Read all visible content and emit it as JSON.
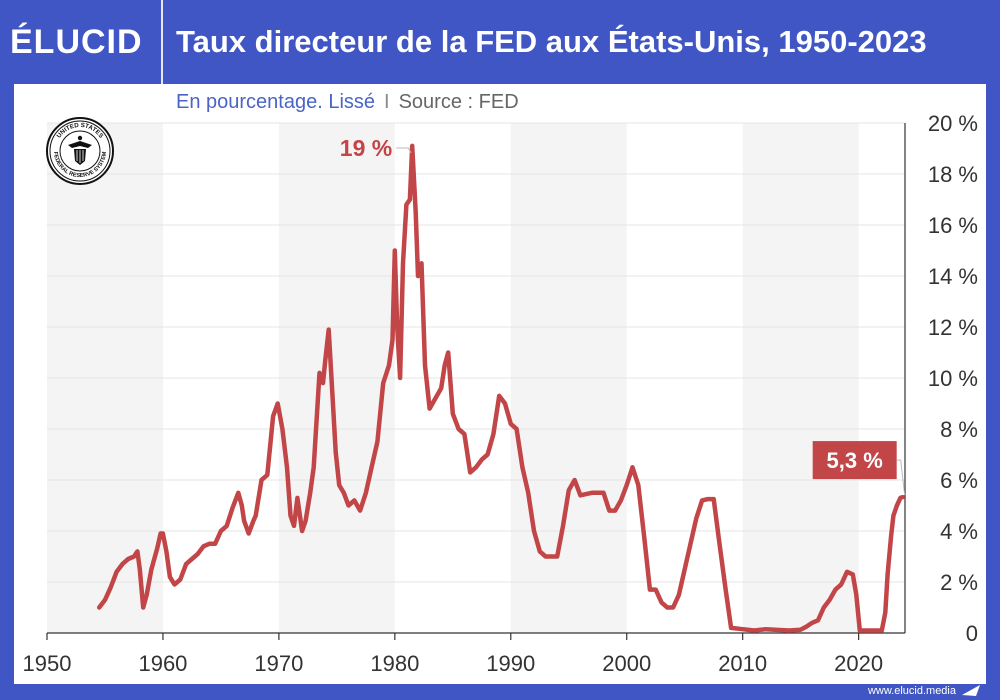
{
  "header": {
    "brand": "ÉLUCID",
    "title": "Taux directeur de la FED aux États-Unis, 1950-2023"
  },
  "subtitle": {
    "main": "En pourcentage. Lissé",
    "separator": "I",
    "source": "Source : FED"
  },
  "footer": {
    "url": "www.elucid.media"
  },
  "seal": {
    "text": "UNITED STATES FEDERAL RESERVE SYSTEM"
  },
  "colors": {
    "line": "#c24548",
    "brand": "#3f56c4",
    "band": "#f4f4f4",
    "grid": "#e4e4e4"
  },
  "chart_data": {
    "type": "line",
    "title": "Taux directeur de la FED aux États-Unis, 1950-2023",
    "subtitle": "En pourcentage. Lissé",
    "source": "Source : FED",
    "xlim": [
      1950,
      2024
    ],
    "ylim": [
      0,
      20
    ],
    "x_ticks": [
      1950,
      1960,
      1970,
      1980,
      1990,
      2000,
      2010,
      2020
    ],
    "x_tick_labels": [
      "1950",
      "1960",
      "1970",
      "1980",
      "1990",
      "2000",
      "2010",
      "2020"
    ],
    "y_ticks": [
      0,
      2,
      4,
      6,
      8,
      10,
      12,
      14,
      16,
      18,
      20
    ],
    "y_tick_labels": [
      "0",
      "2 %",
      "4 %",
      "6 %",
      "8 %",
      "10 %",
      "12 %",
      "14 %",
      "16 %",
      "18 %",
      "20 %"
    ],
    "y_axis_position": "right",
    "alternating_decade_bands": true,
    "annotations": [
      {
        "label": "19 %",
        "x": 1981.5,
        "y": 19.1,
        "style": "text"
      },
      {
        "label": "5,3 %",
        "x": 2023.8,
        "y": 5.33,
        "style": "box"
      }
    ],
    "series": [
      {
        "x": [
          1954.5,
          1955.0,
          1955.5,
          1956.0,
          1956.5,
          1957.0,
          1957.5,
          1957.8,
          1958.0,
          1958.3,
          1958.6,
          1959.0,
          1959.5,
          1959.8,
          1960.0,
          1960.3,
          1960.6,
          1961.0,
          1961.5,
          1962.0,
          1962.5,
          1963.0,
          1963.5,
          1964.0,
          1964.5,
          1965.0,
          1965.5,
          1966.0,
          1966.5,
          1966.8,
          1967.0,
          1967.4,
          1967.8,
          1968.0,
          1968.5,
          1969.0,
          1969.5,
          1969.9,
          1970.3,
          1970.7,
          1971.0,
          1971.3,
          1971.6,
          1972.0,
          1972.3,
          1972.7,
          1973.0,
          1973.5,
          1973.8,
          1974.0,
          1974.3,
          1974.6,
          1974.9,
          1975.2,
          1975.6,
          1976.0,
          1976.5,
          1977.0,
          1977.5,
          1978.0,
          1978.5,
          1979.0,
          1979.5,
          1979.8,
          1980.0,
          1980.2,
          1980.45,
          1980.7,
          1981.0,
          1981.3,
          1981.5,
          1981.8,
          1982.0,
          1982.3,
          1982.6,
          1983.0,
          1983.5,
          1984.0,
          1984.3,
          1984.6,
          1985.0,
          1985.5,
          1986.0,
          1986.5,
          1987.0,
          1987.5,
          1988.0,
          1988.5,
          1989.0,
          1989.5,
          1990.0,
          1990.5,
          1991.0,
          1991.5,
          1992.0,
          1992.5,
          1993.0,
          1994.0,
          1994.5,
          1995.0,
          1995.5,
          1996.0,
          1997.0,
          1998.0,
          1998.5,
          1999.0,
          1999.5,
          2000.0,
          2000.5,
          2001.0,
          2001.5,
          2002.0,
          2002.5,
          2003.0,
          2003.5,
          2004.0,
          2004.5,
          2005.0,
          2005.5,
          2006.0,
          2006.5,
          2007.0,
          2007.5,
          2008.0,
          2008.5,
          2009.0,
          2010.0,
          2011.0,
          2012.0,
          2013.0,
          2014.0,
          2015.0,
          2015.5,
          2016.0,
          2016.5,
          2017.0,
          2017.5,
          2018.0,
          2018.5,
          2019.0,
          2019.5,
          2019.8,
          2020.1,
          2020.3,
          2021.0,
          2022.0,
          2022.3,
          2022.5,
          2022.8,
          2023.0,
          2023.3,
          2023.6,
          2023.8
        ],
        "y": [
          1.0,
          1.3,
          1.8,
          2.4,
          2.7,
          2.9,
          3.0,
          3.2,
          2.5,
          1.0,
          1.5,
          2.5,
          3.3,
          3.9,
          3.9,
          3.2,
          2.2,
          1.9,
          2.1,
          2.7,
          2.9,
          3.1,
          3.4,
          3.5,
          3.5,
          4.0,
          4.2,
          4.9,
          5.5,
          5.0,
          4.4,
          3.9,
          4.4,
          4.6,
          6.0,
          6.2,
          8.5,
          9.0,
          8.0,
          6.5,
          4.6,
          4.2,
          5.3,
          4.0,
          4.4,
          5.5,
          6.5,
          10.2,
          9.8,
          10.7,
          11.9,
          9.5,
          7.1,
          5.8,
          5.5,
          5.0,
          5.2,
          4.8,
          5.5,
          6.5,
          7.5,
          9.8,
          10.5,
          11.5,
          15.0,
          12.0,
          10.0,
          14.5,
          16.8,
          17.0,
          19.1,
          16.5,
          14.0,
          14.5,
          10.5,
          8.8,
          9.2,
          9.6,
          10.5,
          11.0,
          8.6,
          8.0,
          7.8,
          6.3,
          6.5,
          6.8,
          7.0,
          7.8,
          9.3,
          9.0,
          8.2,
          8.0,
          6.5,
          5.5,
          4.0,
          3.2,
          3.0,
          3.0,
          4.2,
          5.6,
          6.0,
          5.4,
          5.5,
          5.5,
          4.8,
          4.8,
          5.2,
          5.8,
          6.5,
          5.8,
          3.8,
          1.7,
          1.7,
          1.2,
          1.0,
          1.0,
          1.5,
          2.5,
          3.5,
          4.5,
          5.2,
          5.25,
          5.25,
          3.5,
          1.8,
          0.2,
          0.15,
          0.1,
          0.15,
          0.12,
          0.1,
          0.13,
          0.25,
          0.4,
          0.5,
          1.0,
          1.3,
          1.7,
          1.9,
          2.4,
          2.3,
          1.5,
          0.1,
          0.1,
          0.1,
          0.1,
          0.8,
          2.3,
          3.8,
          4.6,
          5.0,
          5.3,
          5.33
        ]
      }
    ]
  }
}
